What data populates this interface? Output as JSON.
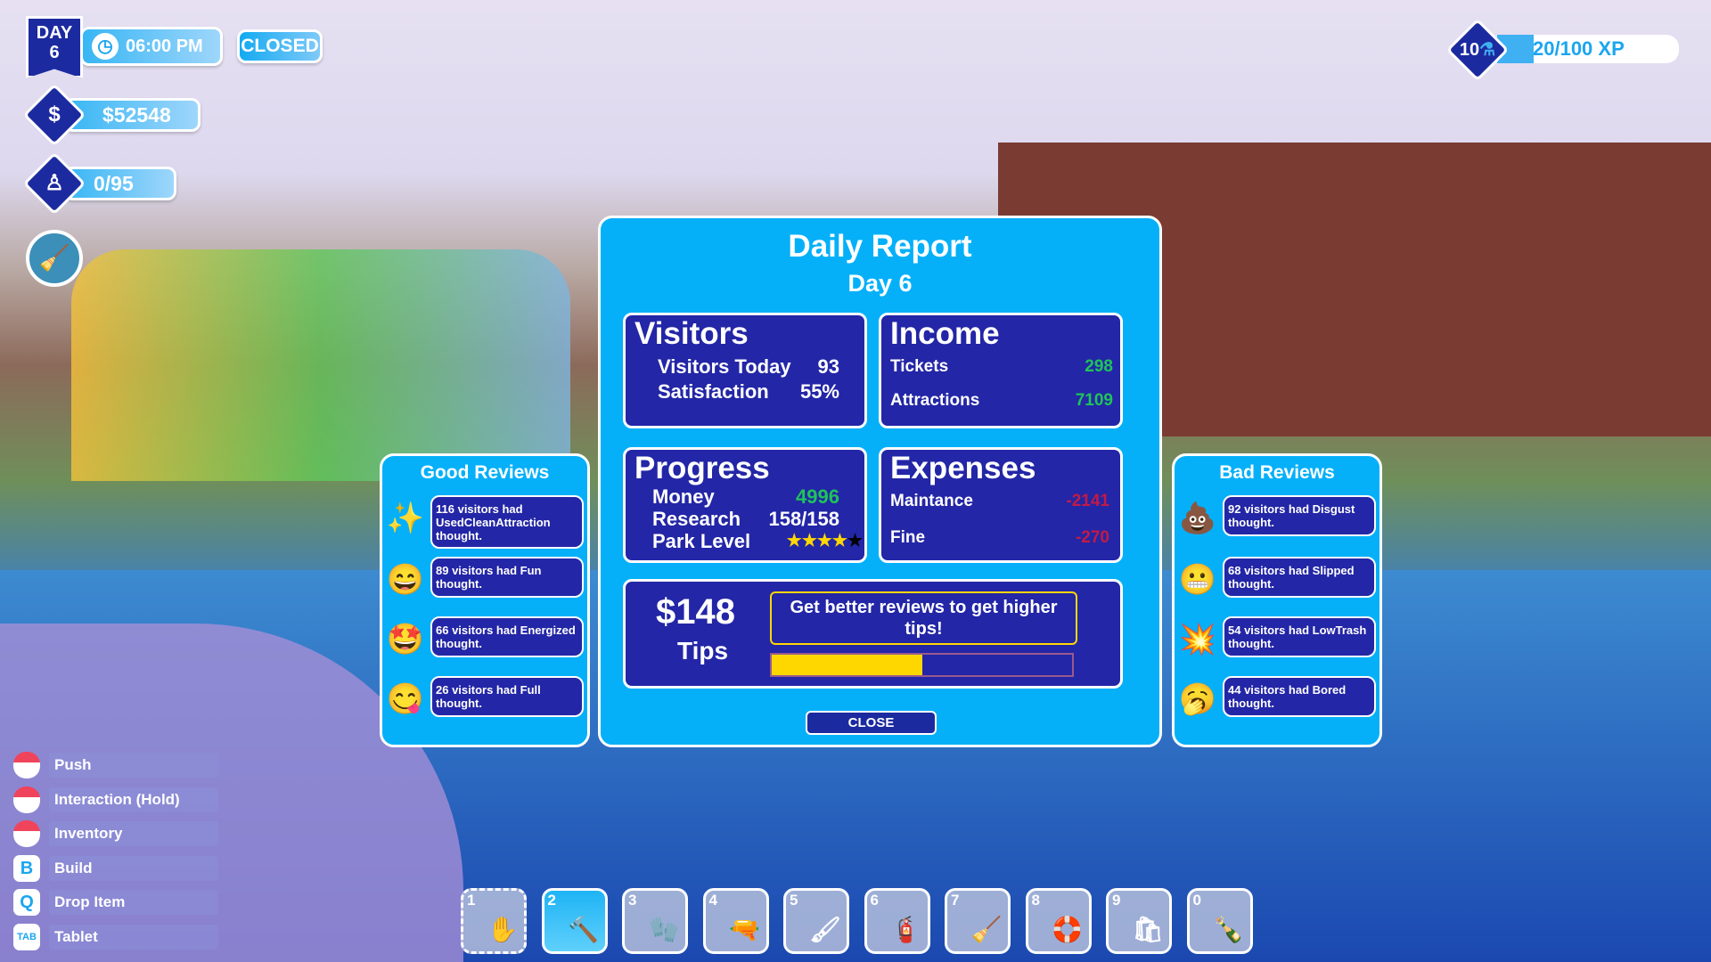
{
  "hud": {
    "day_label": "DAY",
    "day_number": "6",
    "time": "06:00 PM",
    "park_status": "CLOSED",
    "money": "$52548",
    "visitors": "0/95",
    "level": "10",
    "xp": "20/100 XP",
    "xp_progress": 0.2
  },
  "report": {
    "title": "Daily Report",
    "subtitle": "Day 6",
    "visitors": {
      "heading": "Visitors",
      "rows": [
        {
          "label": "Visitors Today",
          "value": "93"
        },
        {
          "label": "Satisfaction",
          "value": "55%"
        }
      ]
    },
    "income": {
      "heading": "Income",
      "rows": [
        {
          "label": "Tickets",
          "value": "298"
        },
        {
          "label": "Attractions",
          "value": "7109"
        }
      ]
    },
    "progress": {
      "heading": "Progress",
      "rows": [
        {
          "label": "Money",
          "value": "4996"
        },
        {
          "label": "Research",
          "value": "158/158"
        },
        {
          "label": "Park Level",
          "value": ""
        }
      ],
      "park_level_stars": 4,
      "park_level_max": 5
    },
    "expenses": {
      "heading": "Expenses",
      "rows": [
        {
          "label": "Maintance",
          "value": "-2141"
        },
        {
          "label": "Fine",
          "value": "-270"
        }
      ]
    },
    "tips": {
      "amount": "$148",
      "label": "Tips",
      "message": "Get better reviews to get higher tips!",
      "progress": 0.5
    },
    "close_label": "CLOSE"
  },
  "good_reviews": {
    "title": "Good Reviews",
    "items": [
      {
        "icon": "sparkles-icon",
        "glyph": "✨",
        "text": "116 visitors had UsedCleanAttraction thought."
      },
      {
        "icon": "grinning-face-icon",
        "glyph": "😄",
        "text": "89 visitors had Fun thought."
      },
      {
        "icon": "star-struck-icon",
        "glyph": "🤩",
        "text": "66 visitors had Energized thought."
      },
      {
        "icon": "yum-face-icon",
        "glyph": "😋",
        "text": "26 visitors had Full thought."
      }
    ]
  },
  "bad_reviews": {
    "title": "Bad Reviews",
    "items": [
      {
        "icon": "poop-icon",
        "glyph": "💩",
        "text": "92 visitors had Disgust thought."
      },
      {
        "icon": "grimacing-face-icon",
        "glyph": "😬",
        "text": "68 visitors had Slipped thought."
      },
      {
        "icon": "splat-icon",
        "glyph": "💥",
        "text": "54 visitors had LowTrash thought."
      },
      {
        "icon": "yawning-face-icon",
        "glyph": "🥱",
        "text": "44 visitors had Bored thought."
      }
    ]
  },
  "controls": [
    {
      "key": "",
      "icon": "mouse-left-icon",
      "label": "Push"
    },
    {
      "key": "",
      "icon": "mouse-left-hold-icon",
      "label": "Interaction (Hold)"
    },
    {
      "key": "",
      "icon": "mouse-middle-icon",
      "label": "Inventory"
    },
    {
      "key": "B",
      "icon": "key-b-icon",
      "label": "Build"
    },
    {
      "key": "Q",
      "icon": "key-q-icon",
      "label": "Drop Item"
    },
    {
      "key": "TAB",
      "icon": "key-tab-icon",
      "label": "Tablet"
    }
  ],
  "hotbar": {
    "selected": "2",
    "slots": [
      {
        "n": "1",
        "icon": "hand-icon",
        "glyph": "✋"
      },
      {
        "n": "2",
        "icon": "hammer-icon",
        "glyph": "🔨"
      },
      {
        "n": "3",
        "icon": "glove-icon",
        "glyph": "🧤"
      },
      {
        "n": "4",
        "icon": "water-gun-icon",
        "glyph": "🔫"
      },
      {
        "n": "5",
        "icon": "paint-roller-icon",
        "glyph": "🖌"
      },
      {
        "n": "6",
        "icon": "gas-canister-icon",
        "glyph": "🧯"
      },
      {
        "n": "7",
        "icon": "broom-icon",
        "glyph": "🧹"
      },
      {
        "n": "8",
        "icon": "life-ring-icon",
        "glyph": "🛟"
      },
      {
        "n": "9",
        "icon": "trash-bag-icon",
        "glyph": "🛍"
      },
      {
        "n": "0",
        "icon": "bottle-icon",
        "glyph": "🍾"
      }
    ]
  },
  "colors": {
    "panel": "#05b0f9",
    "box": "#2326a6",
    "positive": "#1fc35a",
    "negative": "#c21a45",
    "tips_bar": "#ffd700"
  }
}
